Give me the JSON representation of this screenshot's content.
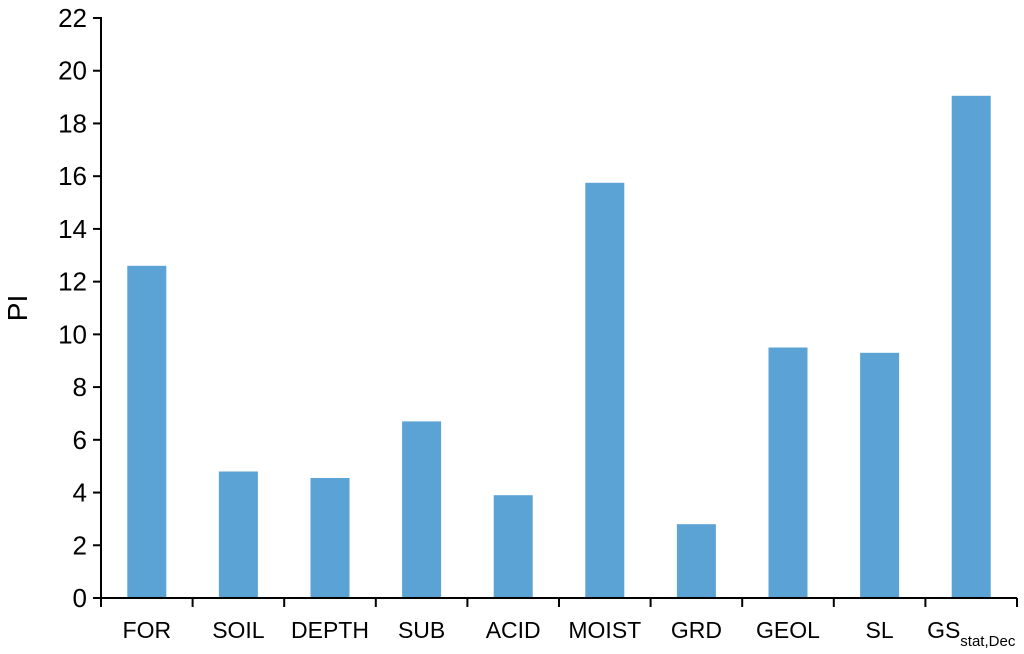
{
  "chart_data": {
    "type": "bar",
    "title": "",
    "xlabel": "",
    "ylabel": "PI",
    "ylim": [
      0,
      22
    ],
    "yticks": [
      0,
      2,
      4,
      6,
      8,
      10,
      12,
      14,
      16,
      18,
      20,
      22
    ],
    "grid": false,
    "legend": "none",
    "bar_color": "#5ba3d5",
    "categories": [
      {
        "label": "FOR",
        "sub": ""
      },
      {
        "label": "SOIL",
        "sub": ""
      },
      {
        "label": "DEPTH",
        "sub": ""
      },
      {
        "label": "SUB",
        "sub": ""
      },
      {
        "label": "ACID",
        "sub": ""
      },
      {
        "label": "MOIST",
        "sub": ""
      },
      {
        "label": "GRD",
        "sub": ""
      },
      {
        "label": "GEOL",
        "sub": ""
      },
      {
        "label": "SL",
        "sub": ""
      },
      {
        "label": "GS",
        "sub": "stat,Dec"
      }
    ],
    "values": [
      12.6,
      4.8,
      4.55,
      6.7,
      3.9,
      15.75,
      2.8,
      9.5,
      9.3,
      19.05
    ]
  }
}
